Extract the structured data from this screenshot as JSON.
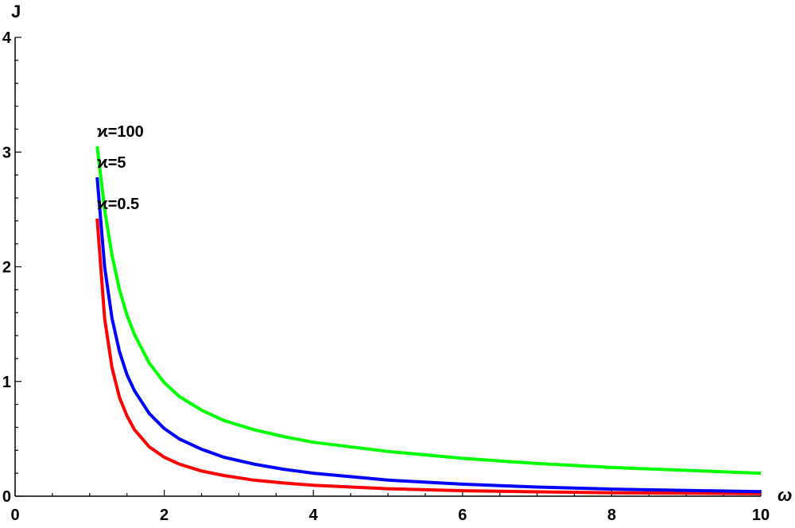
{
  "chart_data": {
    "type": "line",
    "title": "",
    "xlabel": "ω",
    "ylabel": "J",
    "xlim": [
      0,
      10
    ],
    "ylim": [
      0,
      4
    ],
    "grid": false,
    "x_ticks": [
      0,
      2,
      4,
      6,
      8,
      10
    ],
    "y_ticks": [
      0,
      1,
      2,
      3,
      4
    ],
    "x_tick_labels": [
      "0",
      "2",
      "4",
      "6",
      "8",
      "10"
    ],
    "y_tick_labels": [
      "0",
      "1",
      "2",
      "3",
      "4"
    ],
    "series": [
      {
        "name": "ϰ=0.5",
        "color": "#ff0000",
        "x": [
          1.1,
          1.2,
          1.3,
          1.4,
          1.5,
          1.6,
          1.8,
          2.0,
          2.2,
          2.5,
          2.8,
          3.2,
          3.6,
          4.0,
          5.0,
          6.0,
          7.0,
          8.0,
          9.0,
          10.0
        ],
        "y": [
          2.42,
          1.55,
          1.12,
          0.86,
          0.7,
          0.58,
          0.43,
          0.34,
          0.28,
          0.22,
          0.18,
          0.14,
          0.115,
          0.095,
          0.065,
          0.048,
          0.038,
          0.03,
          0.026,
          0.022
        ]
      },
      {
        "name": "ϰ=5",
        "color": "#0000ff",
        "x": [
          1.1,
          1.2,
          1.3,
          1.4,
          1.5,
          1.6,
          1.8,
          2.0,
          2.2,
          2.5,
          2.8,
          3.2,
          3.6,
          4.0,
          5.0,
          6.0,
          7.0,
          8.0,
          9.0,
          10.0
        ],
        "y": [
          2.78,
          2.0,
          1.55,
          1.26,
          1.06,
          0.92,
          0.72,
          0.59,
          0.5,
          0.41,
          0.34,
          0.28,
          0.235,
          0.2,
          0.14,
          0.105,
          0.08,
          0.062,
          0.05,
          0.04
        ]
      },
      {
        "name": "ϰ=100",
        "color": "#00ff00",
        "x": [
          1.1,
          1.2,
          1.3,
          1.4,
          1.5,
          1.6,
          1.8,
          2.0,
          2.2,
          2.5,
          2.8,
          3.2,
          3.6,
          4.0,
          5.0,
          6.0,
          7.0,
          8.0,
          9.0,
          10.0
        ],
        "y": [
          3.05,
          2.5,
          2.1,
          1.8,
          1.58,
          1.41,
          1.16,
          0.99,
          0.87,
          0.75,
          0.66,
          0.58,
          0.52,
          0.47,
          0.39,
          0.33,
          0.285,
          0.25,
          0.225,
          0.2
        ]
      }
    ],
    "annotations": [
      {
        "text": "ϰ=100",
        "series": "ϰ=100"
      },
      {
        "text": "ϰ=5",
        "series": "ϰ=5"
      },
      {
        "text": "ϰ=0.5",
        "series": "ϰ=0.5"
      }
    ]
  }
}
